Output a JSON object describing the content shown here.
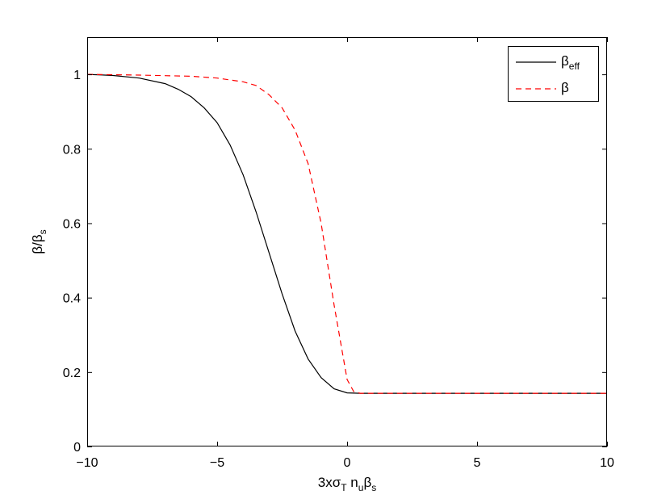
{
  "chart_data": {
    "type": "line",
    "xlim": [
      -10,
      10
    ],
    "ylim": [
      0,
      1.1
    ],
    "x_ticks": [
      -10,
      -5,
      0,
      5,
      10
    ],
    "x_tick_labels": [
      "−10",
      "−5",
      "0",
      "5",
      "10"
    ],
    "y_ticks": [
      0,
      0.2,
      0.4,
      0.6,
      0.8,
      1
    ],
    "y_tick_labels": [
      "0",
      "0.2",
      "0.4",
      "0.6",
      "0.8",
      "1"
    ],
    "xlabel": {
      "main": "3xσ",
      "s1": "T",
      "mid1": " n",
      "s2": "u",
      "mid2": "β",
      "s3": "s"
    },
    "ylabel": {
      "main": "β/β",
      "sub": "s"
    },
    "grid": false,
    "legend_position": "top-right",
    "series": [
      {
        "name": {
          "main": "β",
          "sub": "eff"
        },
        "color": "#000000",
        "style": "solid",
        "x": [
          -10,
          -9,
          -8,
          -7,
          -6.5,
          -6,
          -5.5,
          -5,
          -4.5,
          -4,
          -3.5,
          -3,
          -2.5,
          -2,
          -1.5,
          -1,
          -0.5,
          0,
          0.5,
          1,
          2,
          4,
          6,
          8,
          10
        ],
        "y": [
          1.0,
          0.997,
          0.99,
          0.975,
          0.96,
          0.94,
          0.91,
          0.87,
          0.81,
          0.73,
          0.63,
          0.52,
          0.41,
          0.31,
          0.235,
          0.185,
          0.155,
          0.144,
          0.143,
          0.143,
          0.143,
          0.143,
          0.143,
          0.143,
          0.143
        ]
      },
      {
        "name": {
          "main": "β",
          "sub": ""
        },
        "color": "#ff0000",
        "style": "dashed",
        "x": [
          -10,
          -8,
          -6,
          -5,
          -4,
          -3.5,
          -3,
          -2.5,
          -2,
          -1.5,
          -1,
          -0.5,
          0,
          0.25,
          0.5,
          1,
          2,
          4,
          6,
          8,
          10
        ],
        "y": [
          1.0,
          0.998,
          0.995,
          0.99,
          0.98,
          0.97,
          0.945,
          0.91,
          0.85,
          0.76,
          0.6,
          0.38,
          0.18,
          0.148,
          0.143,
          0.143,
          0.143,
          0.143,
          0.143,
          0.143,
          0.143
        ]
      }
    ]
  }
}
